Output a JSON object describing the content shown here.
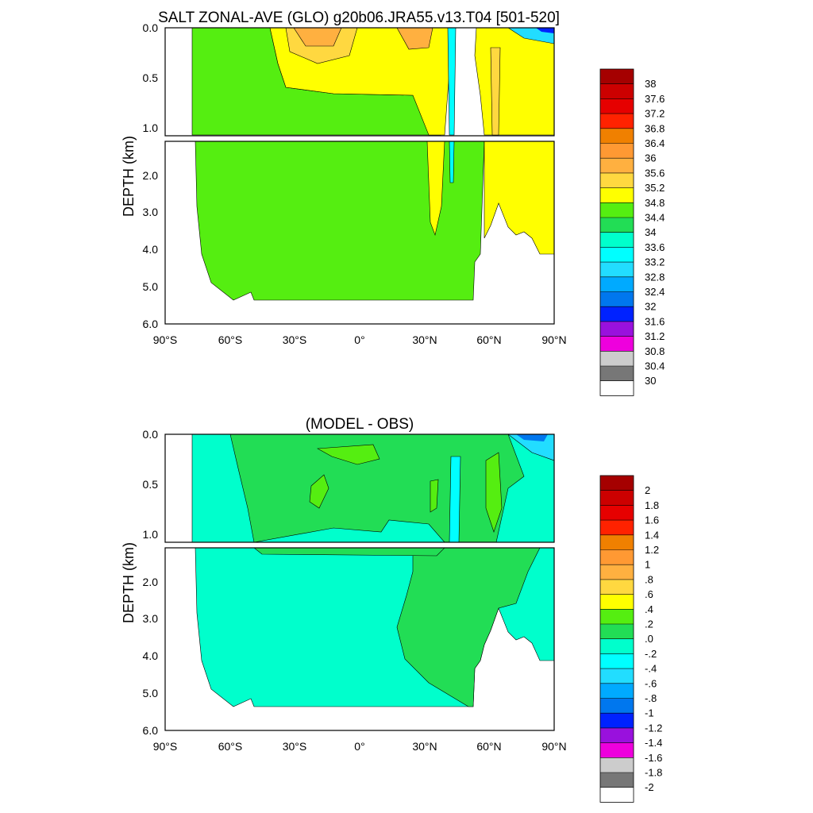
{
  "chart_data": [
    {
      "type": "heatmap",
      "title": "SALT ZONAL-AVE (GLO) g20b06.JRA55.v13.T04 [501-520]",
      "xlabel": "",
      "ylabel": "DEPTH (km)",
      "x_ticks": [
        "90°S",
        "60°S",
        "30°S",
        "0°",
        "30°N",
        "60°N",
        "90°N"
      ],
      "y_ticks_upper": [
        "0.0",
        "0.5",
        "1.0"
      ],
      "y_ticks_lower": [
        "2.0",
        "3.0",
        "4.0",
        "5.0",
        "6.0"
      ],
      "xlim": [
        -90,
        90
      ],
      "ylim": [
        6,
        0
      ],
      "colorbar": {
        "labels": [
          "38",
          "37.6",
          "37.2",
          "36.8",
          "36.4",
          "36",
          "35.6",
          "35.2",
          "34.8",
          "34.4",
          "34",
          "33.6",
          "33.2",
          "32.8",
          "32.4",
          "32",
          "31.6",
          "31.2",
          "30.8",
          "30.4",
          "30"
        ],
        "colors": [
          "#a50000",
          "#cc0000",
          "#e60000",
          "#ff2200",
          "#f08000",
          "#ff9933",
          "#ffb040",
          "#ffd840",
          "#ffff00",
          "#55ee11",
          "#22dd55",
          "#00ffcc",
          "#00ffff",
          "#22ddff",
          "#00aaff",
          "#0077ee",
          "#0022ff",
          "#9911dd",
          "#ee00dd",
          "#cccccc",
          "#777777",
          "#ffffff"
        ]
      },
      "field_colors": {
        "background": "#55ee11",
        "high": "#ffff00",
        "higher": "#ffd840",
        "highest": "#ffb040",
        "low": "#00ffff",
        "lowest": "#0022ff"
      }
    },
    {
      "type": "heatmap",
      "title": "(MODEL - OBS)",
      "xlabel": "",
      "ylabel": "DEPTH (km)",
      "x_ticks": [
        "90°S",
        "60°S",
        "30°S",
        "0°",
        "30°N",
        "60°N",
        "90°N"
      ],
      "y_ticks_upper": [
        "0.0",
        "0.5",
        "1.0"
      ],
      "y_ticks_lower": [
        "2.0",
        "3.0",
        "4.0",
        "5.0",
        "6.0"
      ],
      "xlim": [
        -90,
        90
      ],
      "ylim": [
        6,
        0
      ],
      "colorbar": {
        "labels": [
          "2",
          "1.8",
          "1.6",
          "1.4",
          "1.2",
          "1",
          ".8",
          ".6",
          ".4",
          ".2",
          ".0",
          "-.2",
          "-.4",
          "-.6",
          "-.8",
          "-1",
          "-1.2",
          "-1.4",
          "-1.6",
          "-1.8",
          "-2"
        ],
        "colors": [
          "#a50000",
          "#cc0000",
          "#e60000",
          "#ff2200",
          "#f08000",
          "#ff9933",
          "#ffb040",
          "#ffd840",
          "#ffff00",
          "#55ee11",
          "#22dd55",
          "#00ffcc",
          "#00ffff",
          "#22ddff",
          "#00aaff",
          "#0077ee",
          "#0022ff",
          "#9911dd",
          "#ee00dd",
          "#cccccc",
          "#777777",
          "#ffffff"
        ]
      },
      "field_colors": {
        "background": "#00ffcc",
        "positive": "#22dd55",
        "more_positive": "#55ee11",
        "negative": "#00ffff",
        "most_negative": "#0022ff"
      }
    }
  ]
}
